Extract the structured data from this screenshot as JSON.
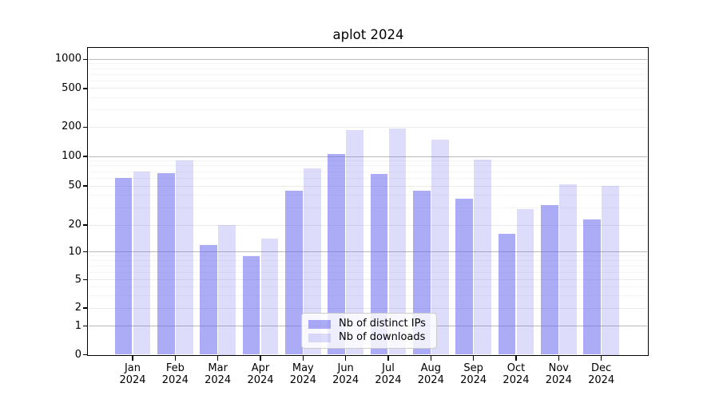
{
  "chart_data": {
    "type": "bar",
    "title": "aplot 2024",
    "categories": [
      "Jan 2024",
      "Feb 2024",
      "Mar 2024",
      "Apr 2024",
      "May 2024",
      "Jun 2024",
      "Jul 2024",
      "Aug 2024",
      "Sep 2024",
      "Oct 2024",
      "Nov 2024",
      "Dec 2024"
    ],
    "series": [
      {
        "name": "Nb of distinct IPs",
        "color": "rgba(102,102,238,0.55)",
        "values": [
          60,
          67,
          12,
          9,
          45,
          105,
          66,
          45,
          37,
          16,
          32,
          23
        ]
      },
      {
        "name": "Nb of downloads",
        "color": "rgba(102,102,238,0.22)",
        "values": [
          70,
          91,
          20,
          14,
          75,
          188,
          195,
          150,
          93,
          29,
          52,
          50
        ]
      }
    ],
    "xlabel": "",
    "ylabel": "",
    "yscale": "symlog",
    "yticks": [
      0,
      1,
      2,
      5,
      10,
      20,
      50,
      100,
      200,
      500,
      1000
    ],
    "ylim": [
      0,
      1300
    ],
    "grid": true,
    "legend_position": "lower center"
  },
  "colors": {
    "bar_base": "#6666ee",
    "grid_major": "#b9b9b9",
    "grid_labeled_minor": "#ebebeb",
    "grid_minor": "#f4f4f4",
    "axis": "#000000",
    "legend_border": "#cccccc"
  }
}
